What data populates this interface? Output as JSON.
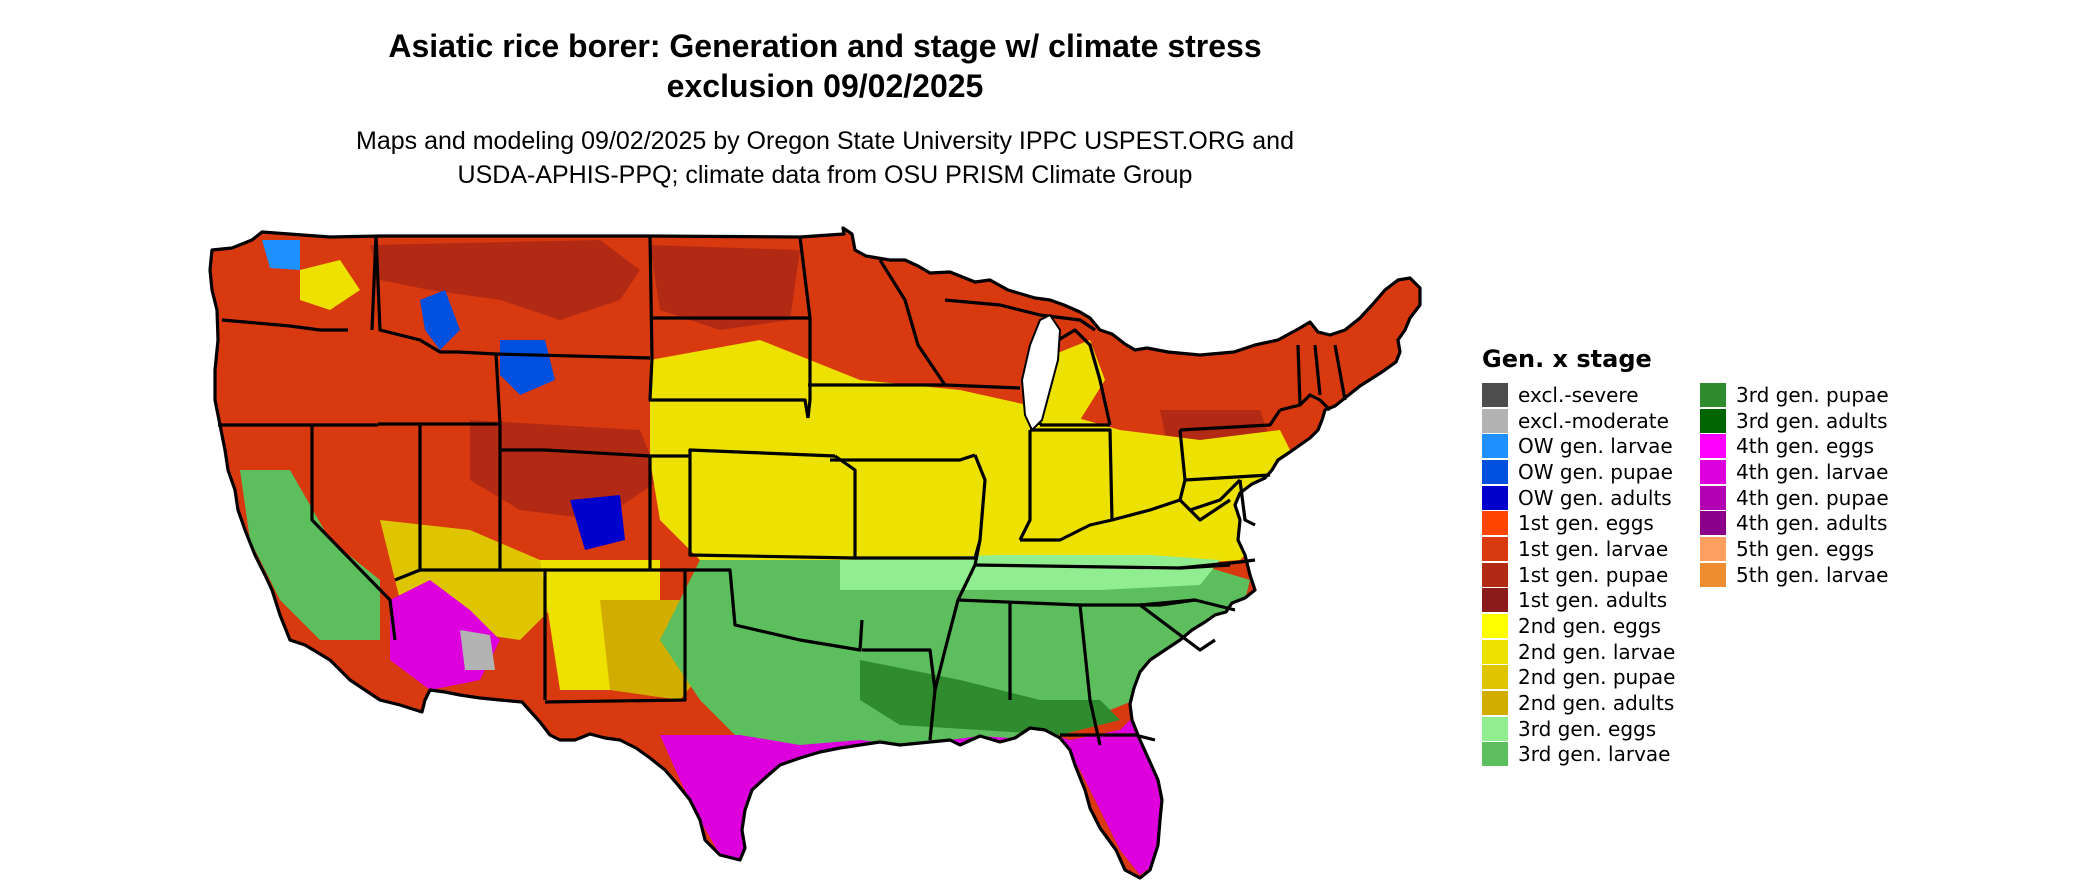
{
  "header": {
    "title_line1": "Asiatic rice borer: Generation and stage w/ climate stress",
    "title_line2": "exclusion 09/02/2025",
    "subtitle_line1": "Maps and modeling 09/02/2025 by Oregon State University IPPC USPEST.ORG and",
    "subtitle_line2": "USDA-APHIS-PPQ; climate data from OSU PRISM Climate Group"
  },
  "legend": {
    "title": "Gen. x stage",
    "items": [
      {
        "label": "excl.-severe",
        "color": "#4d4d4d"
      },
      {
        "label": "excl.-moderate",
        "color": "#b3b3b3"
      },
      {
        "label": "OW gen. larvae",
        "color": "#1e90ff"
      },
      {
        "label": "OW gen. pupae",
        "color": "#0050e0"
      },
      {
        "label": "OW gen. adults",
        "color": "#0000cd"
      },
      {
        "label": "1st gen. eggs",
        "color": "#ff4500"
      },
      {
        "label": "1st gen. larvae",
        "color": "#d9390f"
      },
      {
        "label": "1st gen. pupae",
        "color": "#b22a14"
      },
      {
        "label": "1st gen. adults",
        "color": "#8b1a1a"
      },
      {
        "label": "2nd gen. eggs",
        "color": "#ffff00"
      },
      {
        "label": "2nd gen. larvae",
        "color": "#ede100"
      },
      {
        "label": "2nd gen. pupae",
        "color": "#dfc500"
      },
      {
        "label": "2nd gen. adults",
        "color": "#d1ad00"
      },
      {
        "label": "3rd gen. eggs",
        "color": "#90ee90"
      },
      {
        "label": "3rd gen. larvae",
        "color": "#5cbe5c"
      },
      {
        "label": "3rd gen. pupae",
        "color": "#2e8b2e"
      },
      {
        "label": "3rd gen. adults",
        "color": "#006400"
      },
      {
        "label": "4th gen. eggs",
        "color": "#ff00ff"
      },
      {
        "label": "4th gen. larvae",
        "color": "#dd00dd"
      },
      {
        "label": "4th gen. pupae",
        "color": "#b300b3"
      },
      {
        "label": "4th gen. adults",
        "color": "#8b008b"
      },
      {
        "label": "5th gen. eggs",
        "color": "#ffa060"
      },
      {
        "label": "5th gen. larvae",
        "color": "#ee8c30"
      }
    ]
  }
}
